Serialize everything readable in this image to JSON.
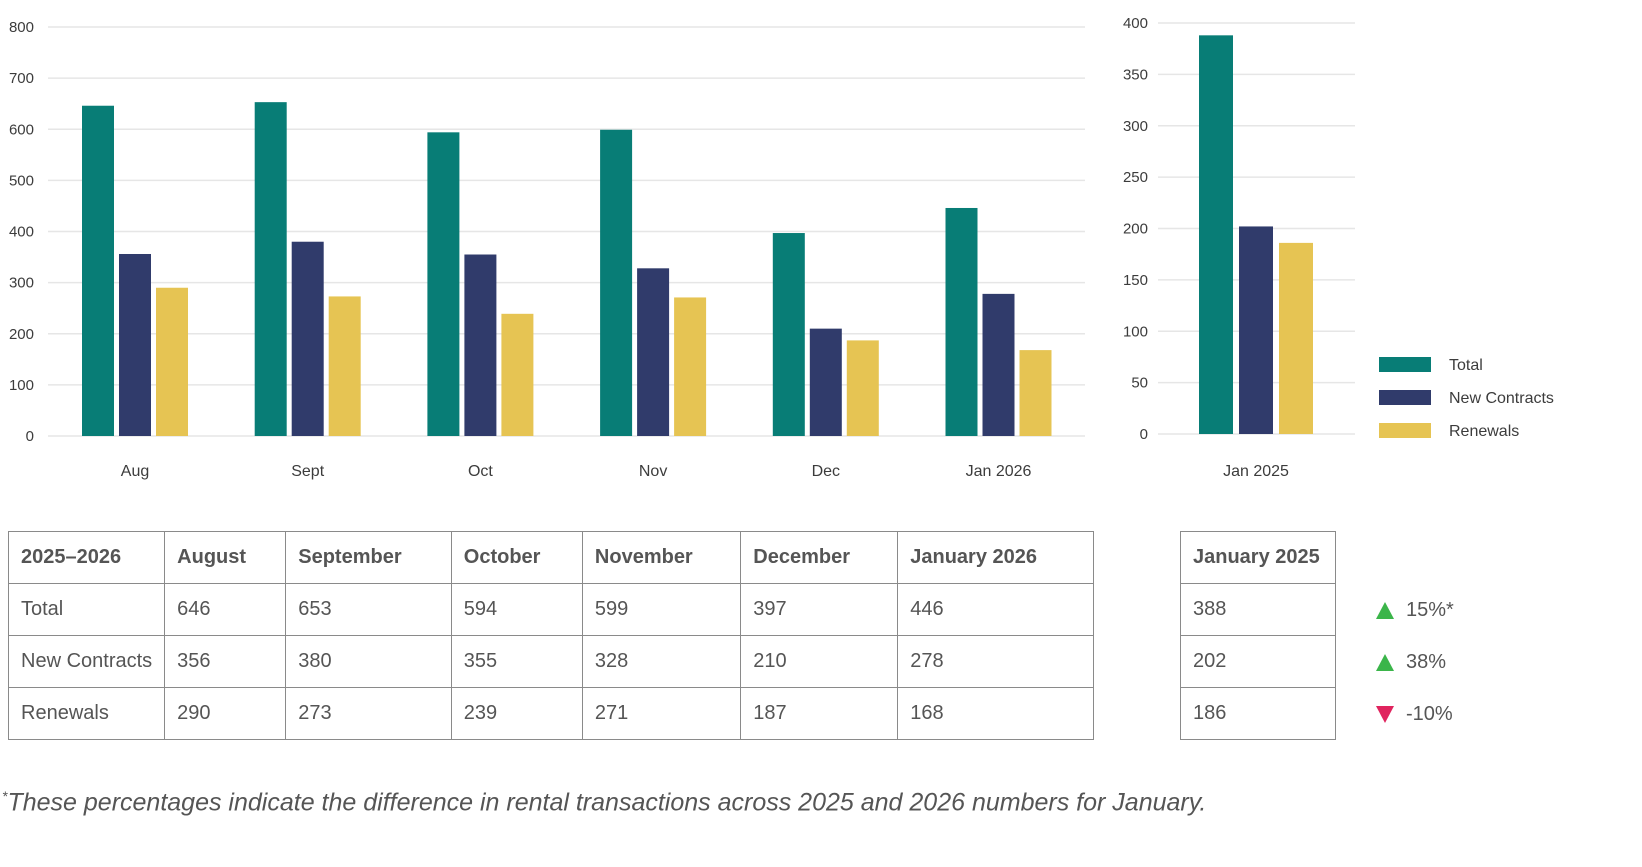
{
  "colors": {
    "total": "#087d76",
    "new_contracts": "#303b6b",
    "renewals": "#e6c453",
    "grid": "#e6e6e6",
    "axis_text": "#3c3c3c"
  },
  "chart_data": [
    {
      "type": "bar",
      "categories": [
        "Aug",
        "Sept",
        "Oct",
        "Nov",
        "Dec",
        "Jan 2026"
      ],
      "series": [
        {
          "name": "Total",
          "values": [
            646,
            653,
            594,
            599,
            397,
            446
          ]
        },
        {
          "name": "New Contracts",
          "values": [
            356,
            380,
            355,
            328,
            210,
            278
          ]
        },
        {
          "name": "Renewals",
          "values": [
            290,
            273,
            239,
            271,
            187,
            168
          ]
        }
      ],
      "ylim": [
        0,
        800
      ],
      "yticks": [
        "0",
        "100",
        "200",
        "300",
        "400",
        "500",
        "600",
        "700",
        "800"
      ],
      "title": "",
      "xlabel": "",
      "ylabel": ""
    },
    {
      "type": "bar",
      "categories": [
        "Jan 2025"
      ],
      "series": [
        {
          "name": "Total",
          "values": [
            388
          ]
        },
        {
          "name": "New Contracts",
          "values": [
            202
          ]
        },
        {
          "name": "Renewals",
          "values": [
            186
          ]
        }
      ],
      "ylim": [
        0,
        400
      ],
      "yticks": [
        "0",
        "50",
        "100",
        "150",
        "200",
        "250",
        "300",
        "350",
        "400"
      ],
      "title": "",
      "xlabel": "",
      "ylabel": ""
    }
  ],
  "legend": {
    "position": "right",
    "items": [
      {
        "label": "Total",
        "color": "#087d76"
      },
      {
        "label": "New Contracts",
        "color": "#303b6b"
      },
      {
        "label": "Renewals",
        "color": "#e6c453"
      }
    ]
  },
  "main_table": {
    "headers": [
      "2025–2026",
      "August",
      "September",
      "October",
      "November",
      "December",
      "January 2026"
    ],
    "rows": [
      [
        "Total",
        "646",
        "653",
        "594",
        "599",
        "397",
        "446"
      ],
      [
        "New Contracts",
        "356",
        "380",
        "355",
        "328",
        "210",
        "278"
      ],
      [
        "Renewals",
        "290",
        "273",
        "239",
        "271",
        "187",
        "168"
      ]
    ]
  },
  "comparison_table": {
    "header": "January 2025",
    "values": [
      "388",
      "202",
      "186"
    ]
  },
  "changes": [
    {
      "direction": "up",
      "text": "15%*"
    },
    {
      "direction": "up",
      "text": "38%"
    },
    {
      "direction": "down",
      "text": "-10%"
    }
  ],
  "footnote": {
    "marker": "*",
    "text": "These percentages indicate the difference in rental transactions across 2025 and 2026 numbers for January."
  }
}
